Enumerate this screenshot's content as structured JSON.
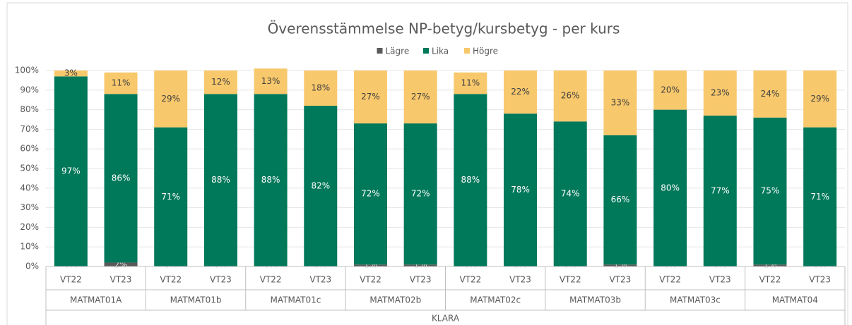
{
  "chart_data": {
    "type": "stacked_bar",
    "title": "Överensstämmelse NP-betyg/kursbetyg - per kurs",
    "categories": [
      "VT22",
      "VT23",
      "VT22",
      "VT23",
      "VT22",
      "VT23",
      "VT22",
      "VT23",
      "VT22",
      "VT23",
      "VT22",
      "VT23",
      "VT22",
      "VT23",
      "VT22",
      "VT23"
    ],
    "groups": [
      "MATMAT01A",
      "MATMAT01b",
      "MATMAT01c",
      "MATMAT02b",
      "MATMAT02c",
      "MATMAT03b",
      "MATMAT03c",
      "MATMAT04"
    ],
    "super_group": "KLARA",
    "series": [
      {
        "name": "Lägre",
        "color": "#595959",
        "values": [
          0,
          2,
          0,
          0,
          0,
          0,
          1,
          1,
          0,
          0,
          0,
          1,
          0,
          0,
          1,
          0
        ],
        "value_labels": [
          "0%",
          "2%",
          "0%",
          "0%",
          "0%",
          "0%",
          "1%",
          "1%",
          "0%",
          "0%",
          "0%",
          "1%",
          "0%",
          "0%",
          "1%",
          "0%"
        ]
      },
      {
        "name": "Lika",
        "color": "#00785a",
        "values": [
          97,
          86,
          71,
          88,
          88,
          82,
          72,
          72,
          88,
          78,
          74,
          66,
          80,
          77,
          75,
          71
        ],
        "value_labels": [
          "97%",
          "86%",
          "71%",
          "88%",
          "88%",
          "82%",
          "72%",
          "72%",
          "88%",
          "78%",
          "74%",
          "66%",
          "80%",
          "77%",
          "75%",
          "71%"
        ]
      },
      {
        "name": "Högre",
        "color": "#f8c86c",
        "values": [
          3,
          11,
          29,
          12,
          13,
          18,
          27,
          27,
          11,
          22,
          26,
          33,
          20,
          23,
          24,
          29
        ],
        "value_labels": [
          "3%",
          "11%",
          "29%",
          "12%",
          "13%",
          "18%",
          "27%",
          "27%",
          "11%",
          "22%",
          "26%",
          "33%",
          "20%",
          "23%",
          "24%",
          "29%"
        ]
      }
    ],
    "ylim": [
      0,
      100
    ],
    "yticks": [
      {
        "value": 0,
        "label": "0%"
      },
      {
        "value": 10,
        "label": "10%"
      },
      {
        "value": 20,
        "label": "20%"
      },
      {
        "value": 30,
        "label": "30%"
      },
      {
        "value": 40,
        "label": "40%"
      },
      {
        "value": 50,
        "label": "50%"
      },
      {
        "value": 60,
        "label": "60%"
      },
      {
        "value": 70,
        "label": "70%"
      },
      {
        "value": 80,
        "label": "80%"
      },
      {
        "value": 90,
        "label": "90%"
      },
      {
        "value": 100,
        "label": "100%"
      }
    ],
    "grid": true,
    "legend": "top"
  }
}
